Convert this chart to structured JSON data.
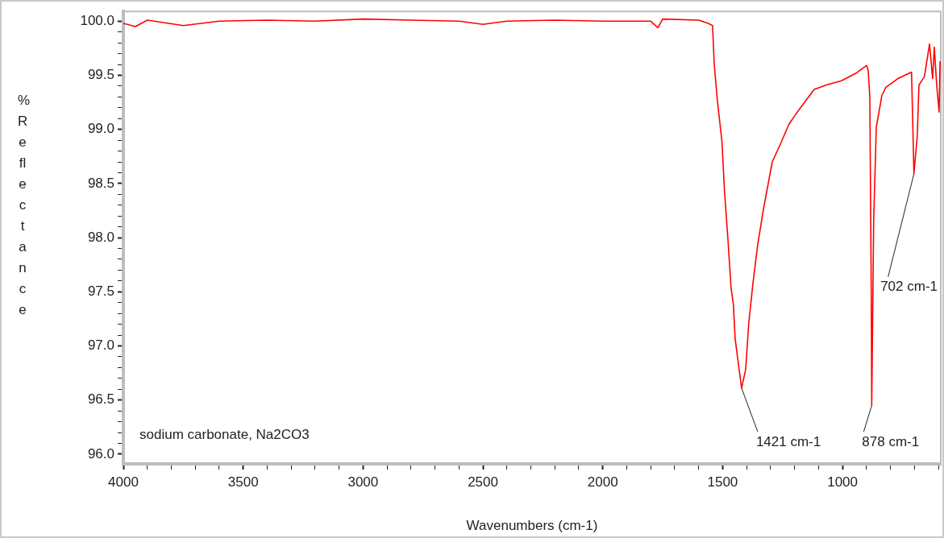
{
  "chart_data": {
    "type": "line",
    "xlabel": "Wavenumbers (cm-1)",
    "ylabel": "%Reflectance",
    "xlim": [
      4000,
      590
    ],
    "ylim": [
      95.91,
      100.09
    ],
    "xticks": [
      {
        "value": 4000,
        "label": "4000"
      },
      {
        "value": 3900,
        "label": null
      },
      {
        "value": 3800,
        "label": null
      },
      {
        "value": 3700,
        "label": null
      },
      {
        "value": 3600,
        "label": null
      },
      {
        "value": 3500,
        "label": "3500"
      },
      {
        "value": 3400,
        "label": null
      },
      {
        "value": 3300,
        "label": null
      },
      {
        "value": 3200,
        "label": null
      },
      {
        "value": 3100,
        "label": null
      },
      {
        "value": 3000,
        "label": "3000"
      },
      {
        "value": 2900,
        "label": null
      },
      {
        "value": 2800,
        "label": null
      },
      {
        "value": 2700,
        "label": null
      },
      {
        "value": 2600,
        "label": null
      },
      {
        "value": 2500,
        "label": "2500"
      },
      {
        "value": 2400,
        "label": null
      },
      {
        "value": 2300,
        "label": null
      },
      {
        "value": 2200,
        "label": null
      },
      {
        "value": 2100,
        "label": null
      },
      {
        "value": 2000,
        "label": "2000"
      },
      {
        "value": 1900,
        "label": null
      },
      {
        "value": 1800,
        "label": null
      },
      {
        "value": 1700,
        "label": null
      },
      {
        "value": 1600,
        "label": null
      },
      {
        "value": 1500,
        "label": "1500"
      },
      {
        "value": 1400,
        "label": null
      },
      {
        "value": 1300,
        "label": null
      },
      {
        "value": 1200,
        "label": null
      },
      {
        "value": 1100,
        "label": null
      },
      {
        "value": 1000,
        "label": "1000"
      },
      {
        "value": 900,
        "label": null
      },
      {
        "value": 800,
        "label": null
      },
      {
        "value": 700,
        "label": null
      },
      {
        "value": 600,
        "label": null
      }
    ],
    "yticks": [
      {
        "value": 96,
        "label": "96.0"
      },
      {
        "value": 96.1,
        "label": null
      },
      {
        "value": 96.2,
        "label": null
      },
      {
        "value": 96.3,
        "label": null
      },
      {
        "value": 96.4,
        "label": null
      },
      {
        "value": 96.5,
        "label": "96.5"
      },
      {
        "value": 96.6,
        "label": null
      },
      {
        "value": 96.7,
        "label": null
      },
      {
        "value": 96.8,
        "label": null
      },
      {
        "value": 96.9,
        "label": null
      },
      {
        "value": 97,
        "label": "97.0"
      },
      {
        "value": 97.1,
        "label": null
      },
      {
        "value": 97.2,
        "label": null
      },
      {
        "value": 97.3,
        "label": null
      },
      {
        "value": 97.4,
        "label": null
      },
      {
        "value": 97.5,
        "label": "97.5"
      },
      {
        "value": 97.6,
        "label": null
      },
      {
        "value": 97.7,
        "label": null
      },
      {
        "value": 97.8,
        "label": null
      },
      {
        "value": 97.9,
        "label": null
      },
      {
        "value": 98,
        "label": "98.0"
      },
      {
        "value": 98.1,
        "label": null
      },
      {
        "value": 98.2,
        "label": null
      },
      {
        "value": 98.3,
        "label": null
      },
      {
        "value": 98.4,
        "label": null
      },
      {
        "value": 98.5,
        "label": "98.5"
      },
      {
        "value": 98.6,
        "label": null
      },
      {
        "value": 98.7,
        "label": null
      },
      {
        "value": 98.8,
        "label": null
      },
      {
        "value": 98.9,
        "label": null
      },
      {
        "value": 99,
        "label": "99.0"
      },
      {
        "value": 99.1,
        "label": null
      },
      {
        "value": 99.2,
        "label": null
      },
      {
        "value": 99.3,
        "label": null
      },
      {
        "value": 99.4,
        "label": null
      },
      {
        "value": 99.5,
        "label": "99.5"
      },
      {
        "value": 99.6,
        "label": null
      },
      {
        "value": 99.7,
        "label": null
      },
      {
        "value": 99.8,
        "label": null
      },
      {
        "value": 99.9,
        "label": null
      },
      {
        "value": 100,
        "label": "100.0"
      }
    ],
    "x": [
      4000,
      3950,
      3900,
      3750,
      3600,
      3400,
      3200,
      3000,
      2800,
      2600,
      2500,
      2400,
      2200,
      2000,
      1800,
      1770,
      1750,
      1600,
      1560,
      1542,
      1535,
      1522,
      1503,
      1492,
      1478,
      1465,
      1455,
      1448,
      1421,
      1404,
      1391,
      1374,
      1354,
      1330,
      1293,
      1260,
      1223,
      1179,
      1118,
      1068,
      1004,
      943,
      900,
      893,
      886,
      880,
      878,
      870,
      859,
      836,
      819,
      769,
      712,
      708,
      702,
      688,
      681,
      658,
      637,
      624,
      617,
      607,
      597,
      593
    ],
    "series": [
      {
        "color": "#ff0000",
        "values": [
          99.98,
          99.95,
          100.01,
          99.96,
          100.0,
          100.01,
          100.0,
          100.02,
          100.01,
          100.0,
          99.97,
          100.0,
          100.01,
          100.0,
          100.0,
          99.94,
          100.02,
          100.01,
          99.98,
          99.96,
          99.6,
          99.27,
          98.89,
          98.42,
          97.99,
          97.54,
          97.38,
          97.07,
          96.61,
          96.78,
          97.21,
          97.57,
          97.93,
          98.26,
          98.7,
          98.86,
          99.05,
          99.19,
          99.37,
          99.41,
          99.45,
          99.52,
          99.59,
          99.55,
          99.3,
          97.49,
          96.45,
          98.15,
          99.02,
          99.31,
          99.39,
          99.47,
          99.53,
          99.16,
          98.59,
          98.94,
          99.41,
          99.49,
          99.79,
          99.47,
          99.76,
          99.41,
          99.16,
          99.63
        ]
      }
    ],
    "annotations": [
      "sodium carbonate, Na2CO3",
      {
        "text": "1421 cm-1",
        "x": 1421,
        "y": 96.61
      },
      {
        "text": "878 cm-1",
        "x": 878,
        "y": 96.45
      },
      {
        "text": "702 cm-1",
        "x": 702,
        "y": 98.59
      }
    ],
    "legend": false,
    "grid": false,
    "marker": "none",
    "line_style": "solid"
  }
}
